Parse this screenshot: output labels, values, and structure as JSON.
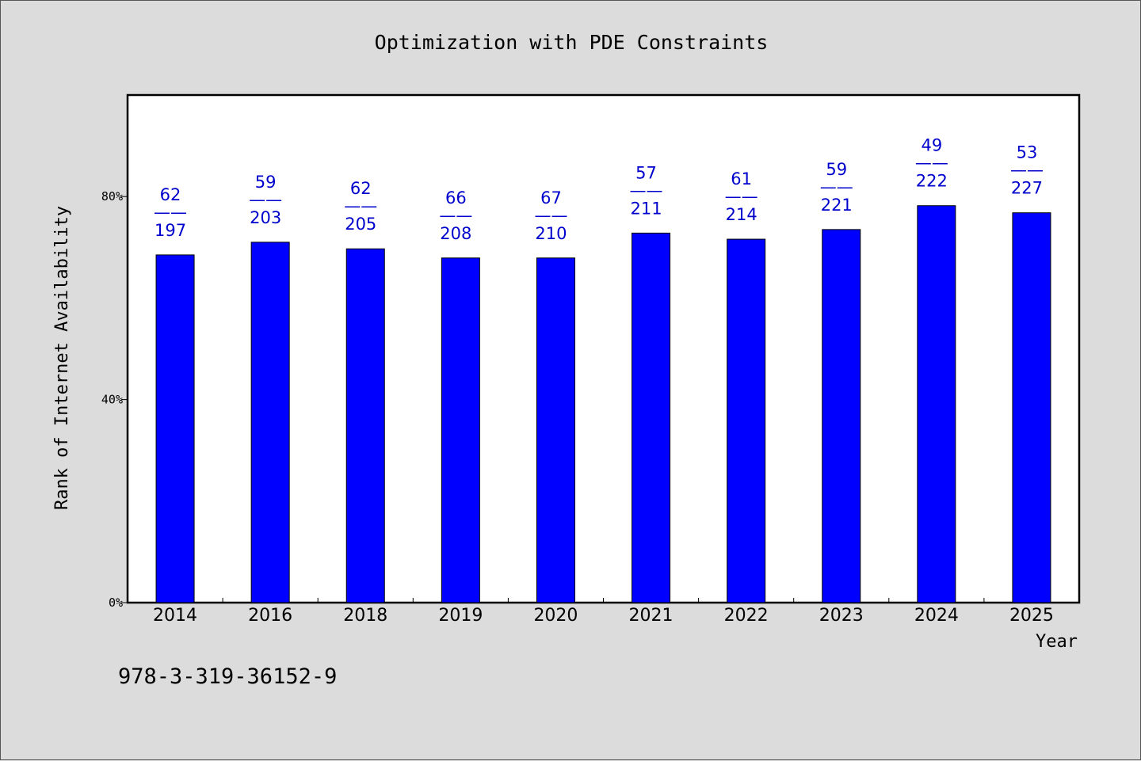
{
  "chart_data": {
    "type": "bar",
    "title": "Optimization with PDE Constraints",
    "xlabel": "Year",
    "ylabel": "Rank of Internet Availability",
    "categories": [
      "2014",
      "2016",
      "2018",
      "2019",
      "2020",
      "2021",
      "2022",
      "2023",
      "2024",
      "2025"
    ],
    "values": [
      68.5,
      71.0,
      69.7,
      67.9,
      67.9,
      72.8,
      71.6,
      73.5,
      78.2,
      76.8
    ],
    "data_labels": [
      {
        "top": "62",
        "sep": "——",
        "bottom": "197"
      },
      {
        "top": "59",
        "sep": "——",
        "bottom": "203"
      },
      {
        "top": "62",
        "sep": "——",
        "bottom": "205"
      },
      {
        "top": "66",
        "sep": "——",
        "bottom": "208"
      },
      {
        "top": "67",
        "sep": "——",
        "bottom": "210"
      },
      {
        "top": "57",
        "sep": "——",
        "bottom": "211"
      },
      {
        "top": "61",
        "sep": "——",
        "bottom": "214"
      },
      {
        "top": "59",
        "sep": "——",
        "bottom": "221"
      },
      {
        "top": "49",
        "sep": "——",
        "bottom": "222"
      },
      {
        "top": "53",
        "sep": "——",
        "bottom": "227"
      }
    ],
    "ylim": [
      0,
      100
    ],
    "yticks": [
      {
        "value": 0,
        "label": "0%"
      },
      {
        "value": 40,
        "label": "40%"
      },
      {
        "value": 80,
        "label": "80%"
      }
    ],
    "grid": false,
    "bar_color": "#0000ff",
    "label_color": "#0000cc",
    "plot_background": "#ffffff",
    "page_background": "#dcdcdc"
  },
  "footer_text": "978-3-319-36152-9"
}
